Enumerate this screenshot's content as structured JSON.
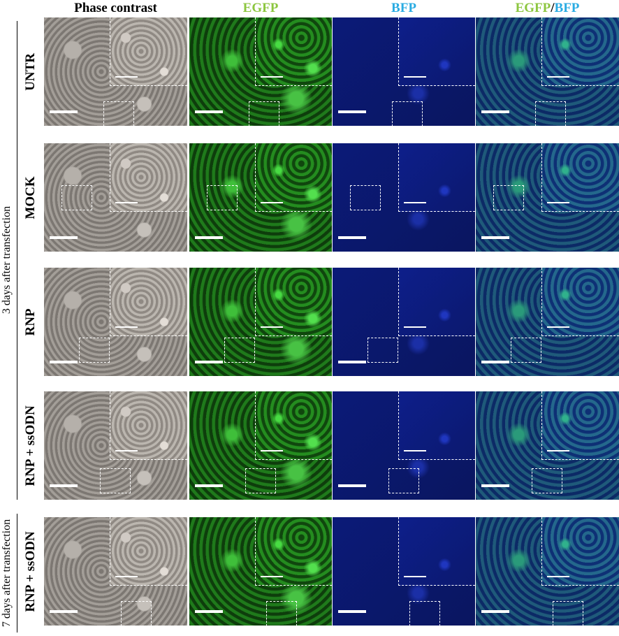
{
  "header": {
    "columns": [
      "Phase contrast",
      "EGFP",
      "BFP"
    ],
    "merged": [
      "EGFP",
      "/",
      "BFP"
    ]
  },
  "groups": [
    {
      "label": "3 days after transfection"
    },
    {
      "label": "7 days after transfection"
    }
  ],
  "rows": [
    {
      "label": "UNTR"
    },
    {
      "label": "MOCK"
    },
    {
      "label": "RNP"
    },
    {
      "label": "RNP + ssODN"
    },
    {
      "label": "RNP + ssODN"
    }
  ]
}
